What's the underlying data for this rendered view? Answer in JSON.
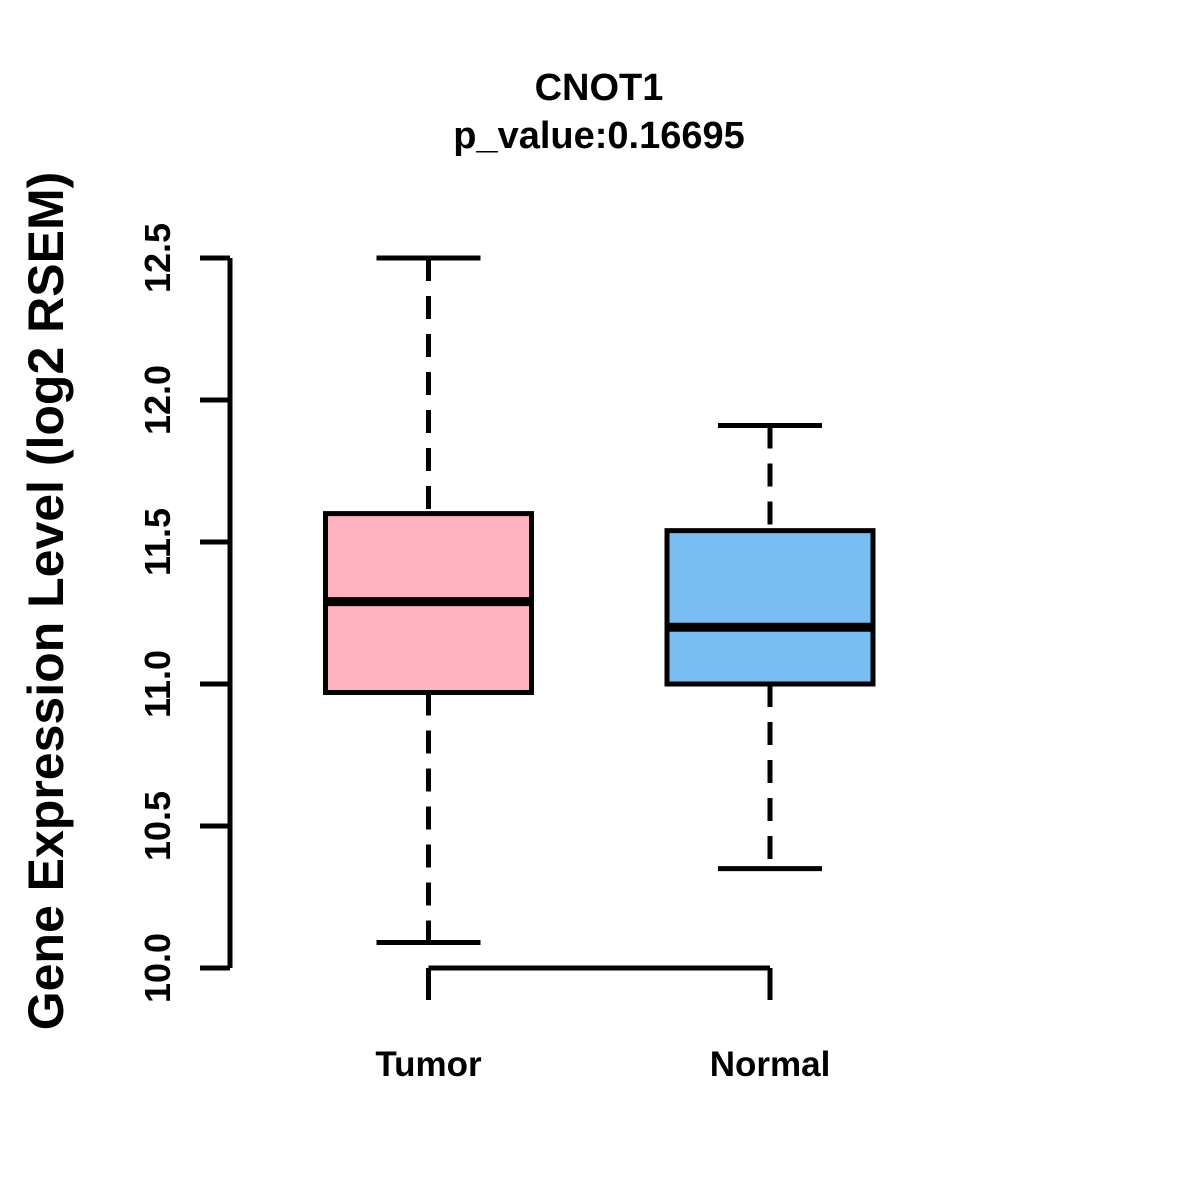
{
  "header": {
    "title": "CNOT1",
    "subtitle": "p_value:0.16695"
  },
  "chart_data": {
    "type": "boxplot",
    "title": "CNOT1",
    "subtitle": "p_value:0.16695",
    "xlabel": "",
    "ylabel": "Gene Expression Level (log2 RSEM)",
    "ylim": [
      10.0,
      12.5
    ],
    "yticks": [
      10.0,
      10.5,
      11.0,
      11.5,
      12.0,
      12.5
    ],
    "ytick_labels": [
      "10.0",
      "10.5",
      "11.0",
      "11.5",
      "12.0",
      "12.5"
    ],
    "grid": "off",
    "legend": "none",
    "categories": [
      "Tumor",
      "Normal"
    ],
    "groups": [
      {
        "label": "Tumor",
        "fill_color": "#FFB3C1",
        "lower_whisker": 10.09,
        "q1": 10.97,
        "median": 11.29,
        "q3": 11.6,
        "upper_whisker": 12.5
      },
      {
        "label": "Normal",
        "fill_color": "#79BEF2",
        "lower_whisker": 10.35,
        "q1": 11.0,
        "median": 11.2,
        "q3": 11.54,
        "upper_whisker": 11.91
      }
    ],
    "colors": {
      "axis": "#000000",
      "box_border": "#000000",
      "median_line": "#000000",
      "whisker": "#000000",
      "tumor_fill": "#FFB3C1",
      "normal_fill": "#79BEF2",
      "background": "#FFFFFF",
      "text": "#000000"
    }
  }
}
